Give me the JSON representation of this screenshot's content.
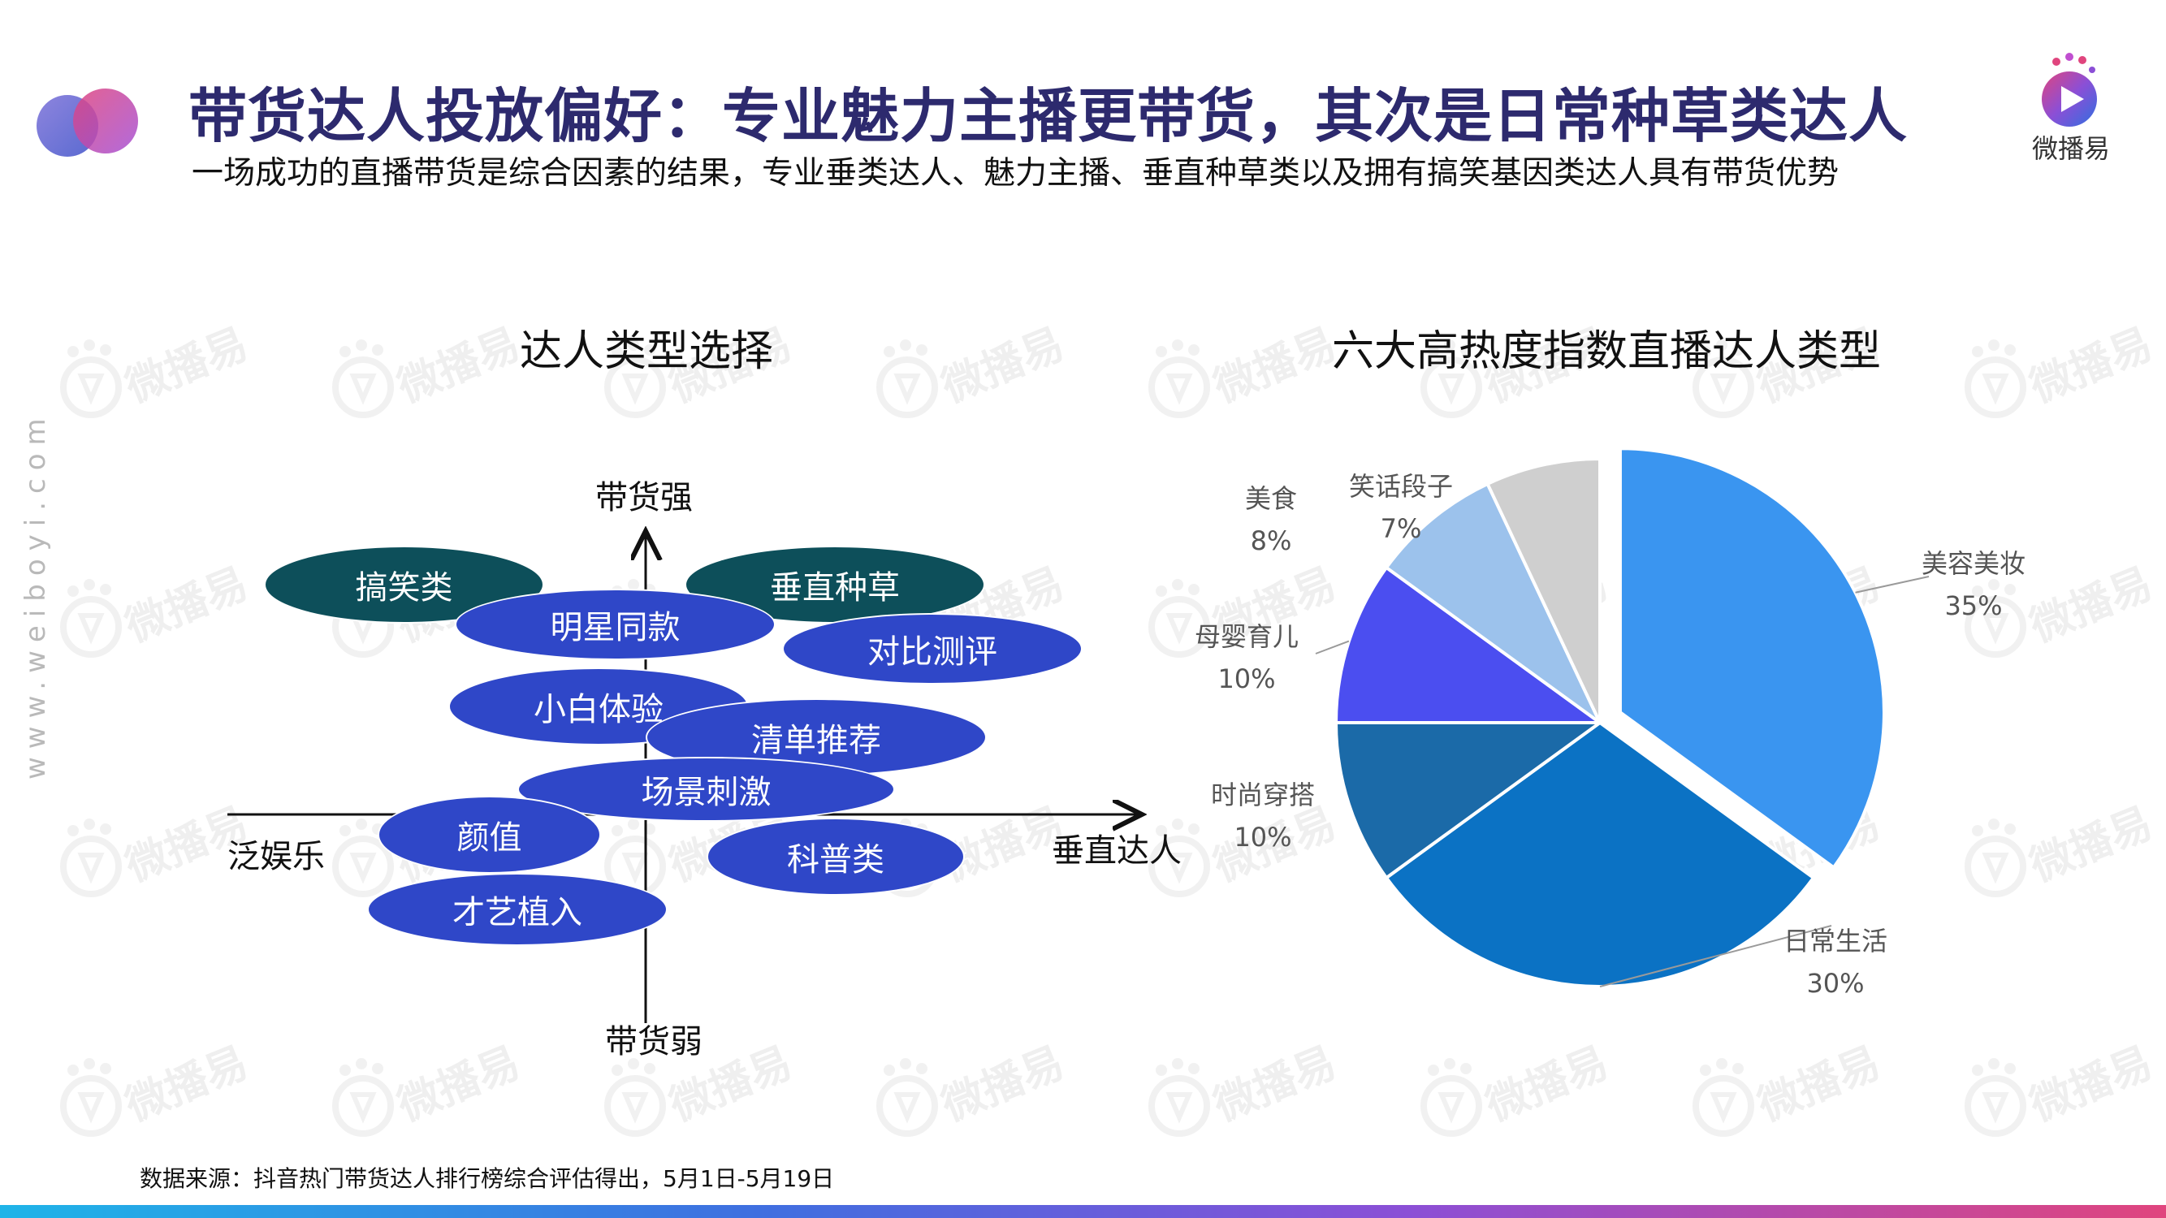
{
  "header": {
    "title": "带货达人投放偏好：专业魅力主播更带货，其次是日常种草类达人",
    "subtitle": "一场成功的直播带货是综合因素的结果，专业垂类达人、魅力主播、垂直种草类以及拥有搞笑基因类达人具有带货优势",
    "brand_name": "微播易",
    "brand_logo_icon": "play-button-logo-icon"
  },
  "side_text": "www.weiboyi.com",
  "watermark_text": "微播易",
  "left_panel": {
    "title": "达人类型选择",
    "axes": {
      "top": "带货强",
      "bottom": "带货弱",
      "left": "泛娱乐",
      "right": "垂直达人"
    },
    "bubbles": [
      {
        "label": "搞笑类",
        "tone": "dark"
      },
      {
        "label": "垂直种草",
        "tone": "dark"
      },
      {
        "label": "明星同款",
        "tone": "blue"
      },
      {
        "label": "对比测评",
        "tone": "blue"
      },
      {
        "label": "小白体验",
        "tone": "blue"
      },
      {
        "label": "清单推荐",
        "tone": "blue"
      },
      {
        "label": "场景刺激",
        "tone": "blue"
      },
      {
        "label": "颜值",
        "tone": "blue"
      },
      {
        "label": "科普类",
        "tone": "blue"
      },
      {
        "label": "才艺植入",
        "tone": "blue"
      }
    ],
    "colors": {
      "dark": "#0d4f5a",
      "blue": "#2f47c8"
    }
  },
  "chart_data": {
    "type": "pie",
    "title": "六大高热度指数直播达人类型",
    "slices": [
      {
        "label": "美容美妆",
        "value": 35,
        "display": "35%",
        "color": "#3a95f0",
        "exploded": true
      },
      {
        "label": "日常生活",
        "value": 30,
        "display": "30%",
        "color": "#0b72c4",
        "exploded": false
      },
      {
        "label": "时尚穿搭",
        "value": 10,
        "display": "10%",
        "color": "#1b6aa8",
        "exploded": false
      },
      {
        "label": "母婴育儿",
        "value": 10,
        "display": "10%",
        "color": "#4b4ef0",
        "exploded": false
      },
      {
        "label": "美食",
        "value": 8,
        "display": "8%",
        "color": "#9cc2ec",
        "exploded": false
      },
      {
        "label": "笑话段子",
        "value": 7,
        "display": "7%",
        "color": "#cfcfcf",
        "exploded": false
      }
    ],
    "legend": "none",
    "labels": "outside"
  },
  "footer": {
    "source": "数据来源：抖音热门带货达人排行榜综合评估得出，5月1日-5月19日"
  }
}
